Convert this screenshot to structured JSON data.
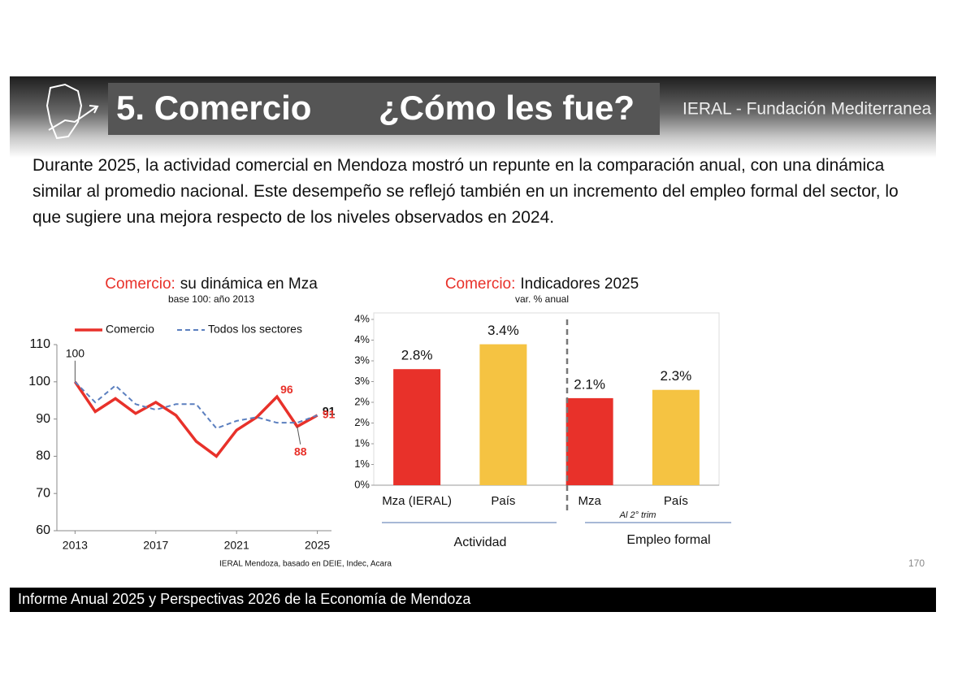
{
  "header": {
    "title": "5. Comercio",
    "question": "¿Cómo les fue?",
    "org": "IERAL - Fundación Mediterranea"
  },
  "paragraph": "Durante 2025, la actividad comercial en Mendoza mostró un repunte en la comparación anual, con una dinámica similar al promedio nacional. Este desempeño se reflejó también en un incremento del empleo formal del sector, lo que sugiere una mejora respecto de los niveles observados en 2024.",
  "chart_data": [
    {
      "type": "line",
      "title_highlight": "Comercio:",
      "title": "su dinámica en Mza",
      "subtitle": "base 100: año 2013",
      "x": [
        2013,
        2014,
        2015,
        2016,
        2017,
        2018,
        2019,
        2020,
        2021,
        2022,
        2023,
        2024,
        2025
      ],
      "series": [
        {
          "name": "Comercio",
          "color": "#e8312a",
          "values": [
            100,
            92,
            95.5,
            91.5,
            94.5,
            91,
            84,
            80,
            87,
            90.5,
            96,
            88,
            91
          ]
        },
        {
          "name": "Todos los sectores",
          "color": "#5b7fbf",
          "values": [
            100,
            94.5,
            99,
            94,
            92.5,
            94,
            94,
            87.5,
            89.5,
            90.5,
            89,
            89,
            91
          ]
        }
      ],
      "xlim": [
        2012.1,
        2025.7
      ],
      "xticks": [
        2013,
        2017,
        2021,
        2025
      ],
      "ylim": [
        60,
        110
      ],
      "yticks": [
        60,
        70,
        80,
        90,
        100,
        110
      ],
      "source": "IERAL Mendoza, basado en DEIE, Indec, Acara"
    },
    {
      "type": "bar",
      "title_highlight": "Comercio:",
      "title": "Indicadores 2025",
      "subtitle": "var. % anual",
      "categories": [
        "Mza (IERAL)",
        "País",
        "Mza",
        "País"
      ],
      "values": [
        2.8,
        3.4,
        2.1,
        2.3
      ],
      "value_labels": [
        "2.8%",
        "3.4%",
        "2.1%",
        "2.3%"
      ],
      "colors": [
        "#e8312a",
        "#f5c342",
        "#e8312a",
        "#f5c342"
      ],
      "ylim": [
        0,
        4
      ],
      "yticks": [
        {
          "value": 0,
          "label": "0%"
        },
        {
          "value": 0.5,
          "label": "1%"
        },
        {
          "value": 1,
          "label": "1%"
        },
        {
          "value": 1.5,
          "label": "2%"
        },
        {
          "value": 2,
          "label": "2%"
        },
        {
          "value": 2.5,
          "label": "3%"
        },
        {
          "value": 3,
          "label": "3%"
        },
        {
          "value": 3.5,
          "label": "4%"
        },
        {
          "value": 4,
          "label": "4%"
        }
      ],
      "groups": [
        "Actividad",
        "Empleo formal"
      ],
      "note": "Al 2° trim"
    }
  ],
  "page_number": "170",
  "footer": "Informe Anual 2025 y Perspectivas 2026 de la Economía de Mendoza"
}
